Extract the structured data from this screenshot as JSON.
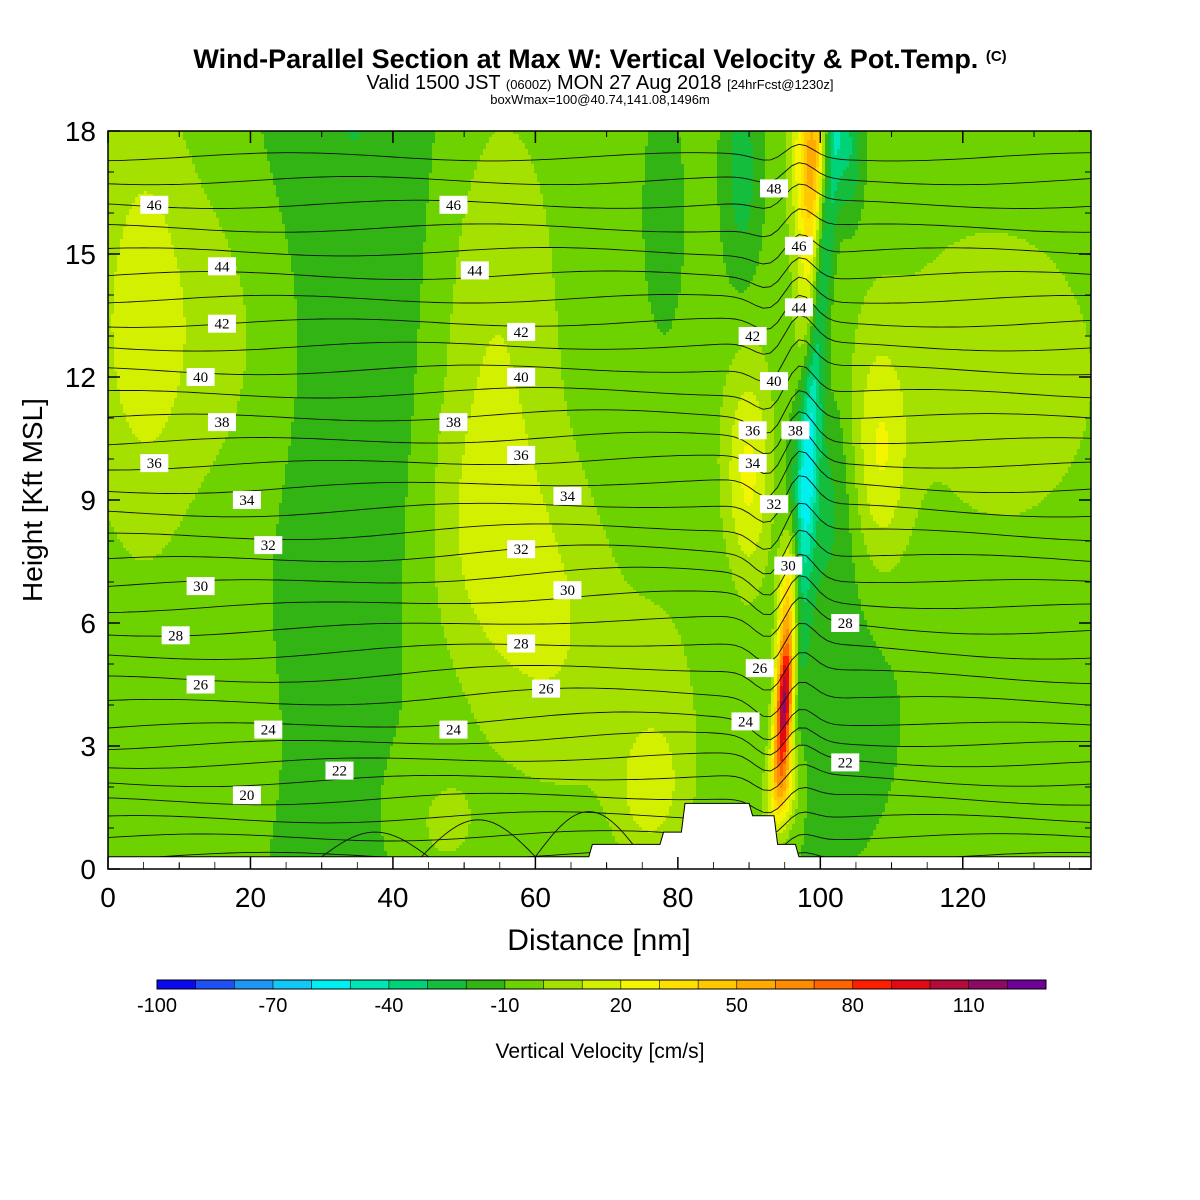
{
  "title": {
    "main": "Wind-Parallel Section at Max W: Vertical Velocity & Pot.Temp.",
    "main_suffix": "(C)",
    "line2_a": "Valid 1500 JST",
    "line2_b": "(0600Z)",
    "line2_c": "MON 27 Aug 2018",
    "line2_d": "[24hrFcst@1230z]",
    "line3": "boxWmax=100@40.74,141.08,1496m"
  },
  "chart_data": {
    "type": "heatmap",
    "xlabel": "Distance [nm]",
    "ylabel": "Height [Kft MSL]",
    "xlim": [
      0,
      138
    ],
    "ylim": [
      0,
      18
    ],
    "xticks": [
      "0",
      "20",
      "40",
      "60",
      "80",
      "100",
      "120"
    ],
    "xtick_values": [
      0,
      20,
      40,
      60,
      80,
      100,
      120
    ],
    "yticks": [
      "0",
      "3",
      "6",
      "9",
      "12",
      "15",
      "18"
    ],
    "ytick_values": [
      0,
      3,
      6,
      9,
      12,
      15,
      18
    ],
    "colorbar": {
      "label": "Vertical Velocity [cm/s]",
      "tick_labels": [
        "-100",
        "-70",
        "-40",
        "-10",
        "20",
        "50",
        "80",
        "110"
      ],
      "tick_values": [
        -100,
        -70,
        -40,
        -10,
        20,
        50,
        80,
        110
      ],
      "min": -100,
      "max": 130,
      "step": 10,
      "colors": [
        "#0a0af0",
        "#1e50f5",
        "#1e96f5",
        "#14c8f5",
        "#00f0f0",
        "#00e6b4",
        "#00d278",
        "#14be3c",
        "#32b414",
        "#6ed200",
        "#a5e100",
        "#d2f000",
        "#f5f500",
        "#ffe100",
        "#ffc800",
        "#ffaa00",
        "#ff8c00",
        "#ff6400",
        "#ff1e00",
        "#e10a14",
        "#b40a3c",
        "#8c0a64",
        "#6e0096"
      ]
    },
    "theta_contours": {
      "name": "Pot.Temp.",
      "unit": "C",
      "levels": [
        18,
        19,
        20,
        21,
        22,
        23,
        24,
        25,
        26,
        27,
        28,
        29,
        30,
        31,
        32,
        33,
        34,
        35,
        36,
        37,
        38,
        39,
        40,
        41,
        42,
        43,
        44,
        45,
        46,
        47,
        48,
        49
      ],
      "labels": [
        {
          "text": "46",
          "x": 6.5,
          "y": 16.2
        },
        {
          "text": "46",
          "x": 48.5,
          "y": 16.2
        },
        {
          "text": "48",
          "x": 93.5,
          "y": 16.6
        },
        {
          "text": "44",
          "x": 16.0,
          "y": 14.7
        },
        {
          "text": "44",
          "x": 51.5,
          "y": 14.6
        },
        {
          "text": "46",
          "x": 97.0,
          "y": 15.2
        },
        {
          "text": "44",
          "x": 97.0,
          "y": 13.7
        },
        {
          "text": "42",
          "x": 16.0,
          "y": 13.3
        },
        {
          "text": "42",
          "x": 58.0,
          "y": 13.1
        },
        {
          "text": "42",
          "x": 90.5,
          "y": 13.0
        },
        {
          "text": "40",
          "x": 13.0,
          "y": 12.0
        },
        {
          "text": "40",
          "x": 58.0,
          "y": 12.0
        },
        {
          "text": "40",
          "x": 93.5,
          "y": 11.9
        },
        {
          "text": "38",
          "x": 16.0,
          "y": 10.9
        },
        {
          "text": "38",
          "x": 48.5,
          "y": 10.9
        },
        {
          "text": "38",
          "x": 96.5,
          "y": 10.7
        },
        {
          "text": "36",
          "x": 6.5,
          "y": 9.9
        },
        {
          "text": "36",
          "x": 58.0,
          "y": 10.1
        },
        {
          "text": "36",
          "x": 90.5,
          "y": 10.7
        },
        {
          "text": "34",
          "x": 19.5,
          "y": 9.0
        },
        {
          "text": "34",
          "x": 64.5,
          "y": 9.1
        },
        {
          "text": "34",
          "x": 90.5,
          "y": 9.9
        },
        {
          "text": "32",
          "x": 93.5,
          "y": 8.9
        },
        {
          "text": "32",
          "x": 22.5,
          "y": 7.9
        },
        {
          "text": "32",
          "x": 58.0,
          "y": 7.8
        },
        {
          "text": "30",
          "x": 95.5,
          "y": 7.4
        },
        {
          "text": "30",
          "x": 13.0,
          "y": 6.9
        },
        {
          "text": "30",
          "x": 64.5,
          "y": 6.8
        },
        {
          "text": "28",
          "x": 103.5,
          "y": 6.0
        },
        {
          "text": "28",
          "x": 9.5,
          "y": 5.7
        },
        {
          "text": "28",
          "x": 58.0,
          "y": 5.5
        },
        {
          "text": "26",
          "x": 91.5,
          "y": 4.9
        },
        {
          "text": "26",
          "x": 13.0,
          "y": 4.5
        },
        {
          "text": "26",
          "x": 61.5,
          "y": 4.4
        },
        {
          "text": "24",
          "x": 89.5,
          "y": 3.6
        },
        {
          "text": "24",
          "x": 22.5,
          "y": 3.4
        },
        {
          "text": "24",
          "x": 48.5,
          "y": 3.4
        },
        {
          "text": "22",
          "x": 32.5,
          "y": 2.4
        },
        {
          "text": "22",
          "x": 103.5,
          "y": 2.6
        },
        {
          "text": "20",
          "x": 19.5,
          "y": 1.8
        }
      ]
    },
    "terrain": {
      "x": [
        0,
        67.5,
        68,
        77.5,
        78,
        80.5,
        81,
        90,
        90.5,
        93.5,
        94,
        96.5,
        97,
        138
      ],
      "y": [
        0.3,
        0.3,
        0.6,
        0.6,
        0.9,
        0.9,
        1.6,
        1.6,
        1.3,
        1.3,
        0.6,
        0.6,
        0.3,
        0.3
      ]
    },
    "grid": false,
    "legend": "colorbar bottom"
  }
}
